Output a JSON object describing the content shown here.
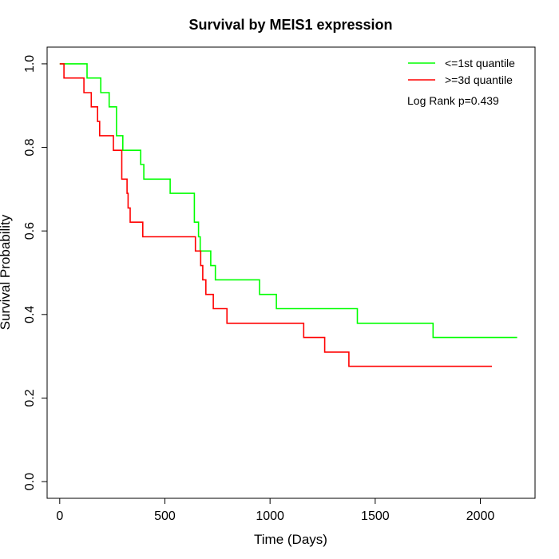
{
  "chart_data": {
    "type": "line",
    "title": "Survival by MEIS1 expression",
    "xlabel": "Time (Days)",
    "ylabel": "Survival Probability",
    "xlim": [
      -60,
      2260
    ],
    "ylim": [
      -0.04,
      1.04
    ],
    "x_ticks": [
      0,
      500,
      1000,
      1500,
      2000
    ],
    "x_tick_labels": [
      "0",
      "500",
      "1000",
      "1500",
      "2000"
    ],
    "y_ticks": [
      0.0,
      0.2,
      0.4,
      0.6,
      0.8,
      1.0
    ],
    "y_tick_labels": [
      "0.0",
      "0.2",
      "0.4",
      "0.6",
      "0.8",
      "1.0"
    ],
    "grid": false,
    "legend_position": "top-right",
    "annotation": "Log Rank p=0.439",
    "series": [
      {
        "name": "<=1st quantile",
        "color": "#00ff00",
        "step": true,
        "x": [
          0,
          130,
          195,
          235,
          270,
          300,
          385,
          400,
          525,
          640,
          660,
          668,
          718,
          740,
          950,
          1030,
          1415,
          1775,
          2175
        ],
        "y": [
          1.0,
          0.966,
          0.931,
          0.897,
          0.828,
          0.793,
          0.759,
          0.724,
          0.69,
          0.621,
          0.586,
          0.552,
          0.517,
          0.483,
          0.448,
          0.414,
          0.379,
          0.345,
          0.345
        ]
      },
      {
        "name": ">=3d quantile",
        "color": "#ff0000",
        "step": true,
        "x": [
          0,
          20,
          115,
          150,
          180,
          190,
          255,
          295,
          320,
          325,
          335,
          395,
          645,
          670,
          680,
          695,
          730,
          795,
          1160,
          1260,
          1375,
          2055
        ],
        "y": [
          1.0,
          0.966,
          0.931,
          0.897,
          0.862,
          0.828,
          0.793,
          0.724,
          0.69,
          0.655,
          0.621,
          0.586,
          0.552,
          0.517,
          0.483,
          0.448,
          0.414,
          0.379,
          0.345,
          0.31,
          0.276,
          0.276
        ]
      }
    ]
  }
}
